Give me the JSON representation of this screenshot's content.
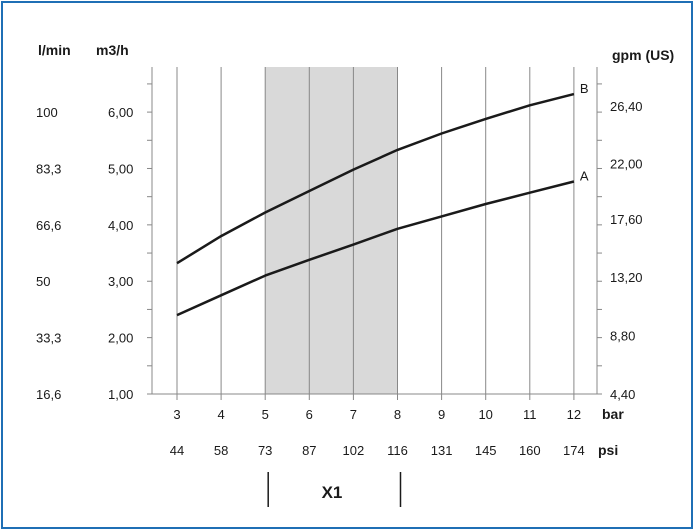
{
  "chart_data": {
    "type": "line",
    "x_bar": [
      3,
      4,
      5,
      6,
      7,
      8,
      9,
      10,
      11,
      12
    ],
    "x_psi": [
      44,
      58,
      73,
      87,
      102,
      116,
      131,
      145,
      160,
      174
    ],
    "x_unit_bar": "bar",
    "x_unit_psi": "psi",
    "ylim_m3h": [
      1.0,
      6.8
    ],
    "y_ticks_m3h": [
      "1,00",
      "2,00",
      "3,00",
      "4,00",
      "5,00",
      "6,00"
    ],
    "y_ticks_lmin": [
      "16,6",
      "33,3",
      "50",
      "66,6",
      "83,3",
      "100"
    ],
    "y_ticks_gpm": [
      "4,40",
      "8,80",
      "13,20",
      "17,60",
      "22,00",
      "26,40"
    ],
    "y_unit_lmin": "l/min",
    "y_unit_m3h": "m3/h",
    "y_unit_gpm": "gpm (US)",
    "highlight_range_bar": [
      5,
      8
    ],
    "highlight_label": "X1",
    "series": [
      {
        "name": "A",
        "values": [
          2.4,
          2.75,
          3.1,
          3.38,
          3.65,
          3.93,
          4.15,
          4.37,
          4.57,
          4.77
        ]
      },
      {
        "name": "B",
        "values": [
          3.32,
          3.8,
          4.22,
          4.6,
          4.98,
          5.33,
          5.62,
          5.88,
          6.12,
          6.32
        ]
      }
    ],
    "grid": true,
    "colors": {
      "line": "#1a1a1a",
      "highlight": "#d9d9d9",
      "frame": "#1f6fb5"
    }
  }
}
